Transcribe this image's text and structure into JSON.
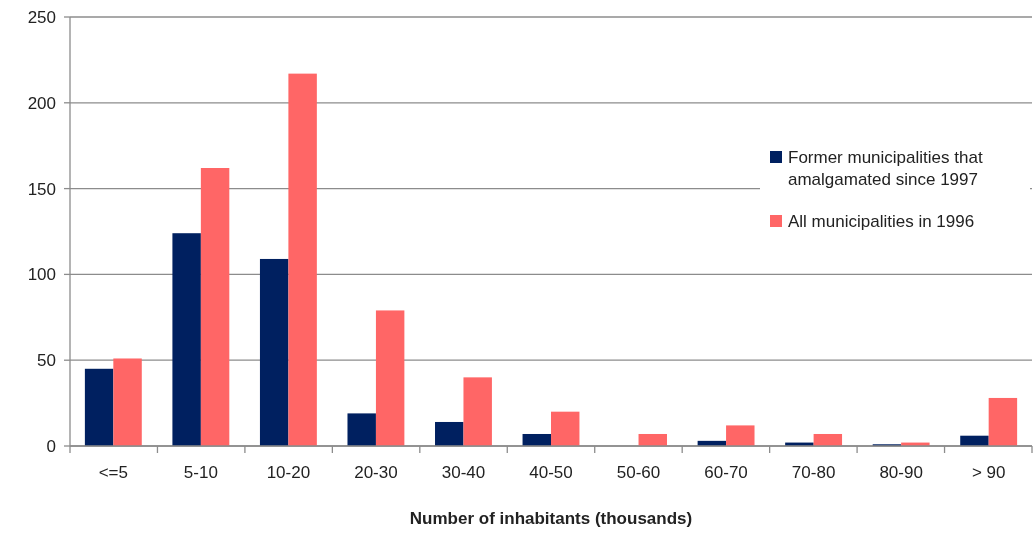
{
  "chart_data": {
    "type": "bar",
    "xlabel": "Number of inhabitants (thousands)",
    "categories": [
      "<=5",
      "5-10",
      "10-20",
      "20-30",
      "30-40",
      "40-50",
      "50-60",
      "60-70",
      "70-80",
      "80-90",
      "> 90"
    ],
    "series": [
      {
        "name": "Former municipalities that amalgamated since 1997",
        "color": "#002060",
        "values": [
          45,
          124,
          109,
          19,
          14,
          7,
          0,
          3,
          2,
          1,
          6
        ]
      },
      {
        "name": "All municipalities in 1996",
        "color": "#ff6666",
        "values": [
          51,
          162,
          217,
          79,
          40,
          20,
          7,
          12,
          7,
          2,
          28
        ]
      }
    ],
    "ylim": [
      0,
      250
    ],
    "yticks": [
      0,
      50,
      100,
      150,
      200,
      250
    ],
    "grid": "y",
    "legend": "right"
  }
}
